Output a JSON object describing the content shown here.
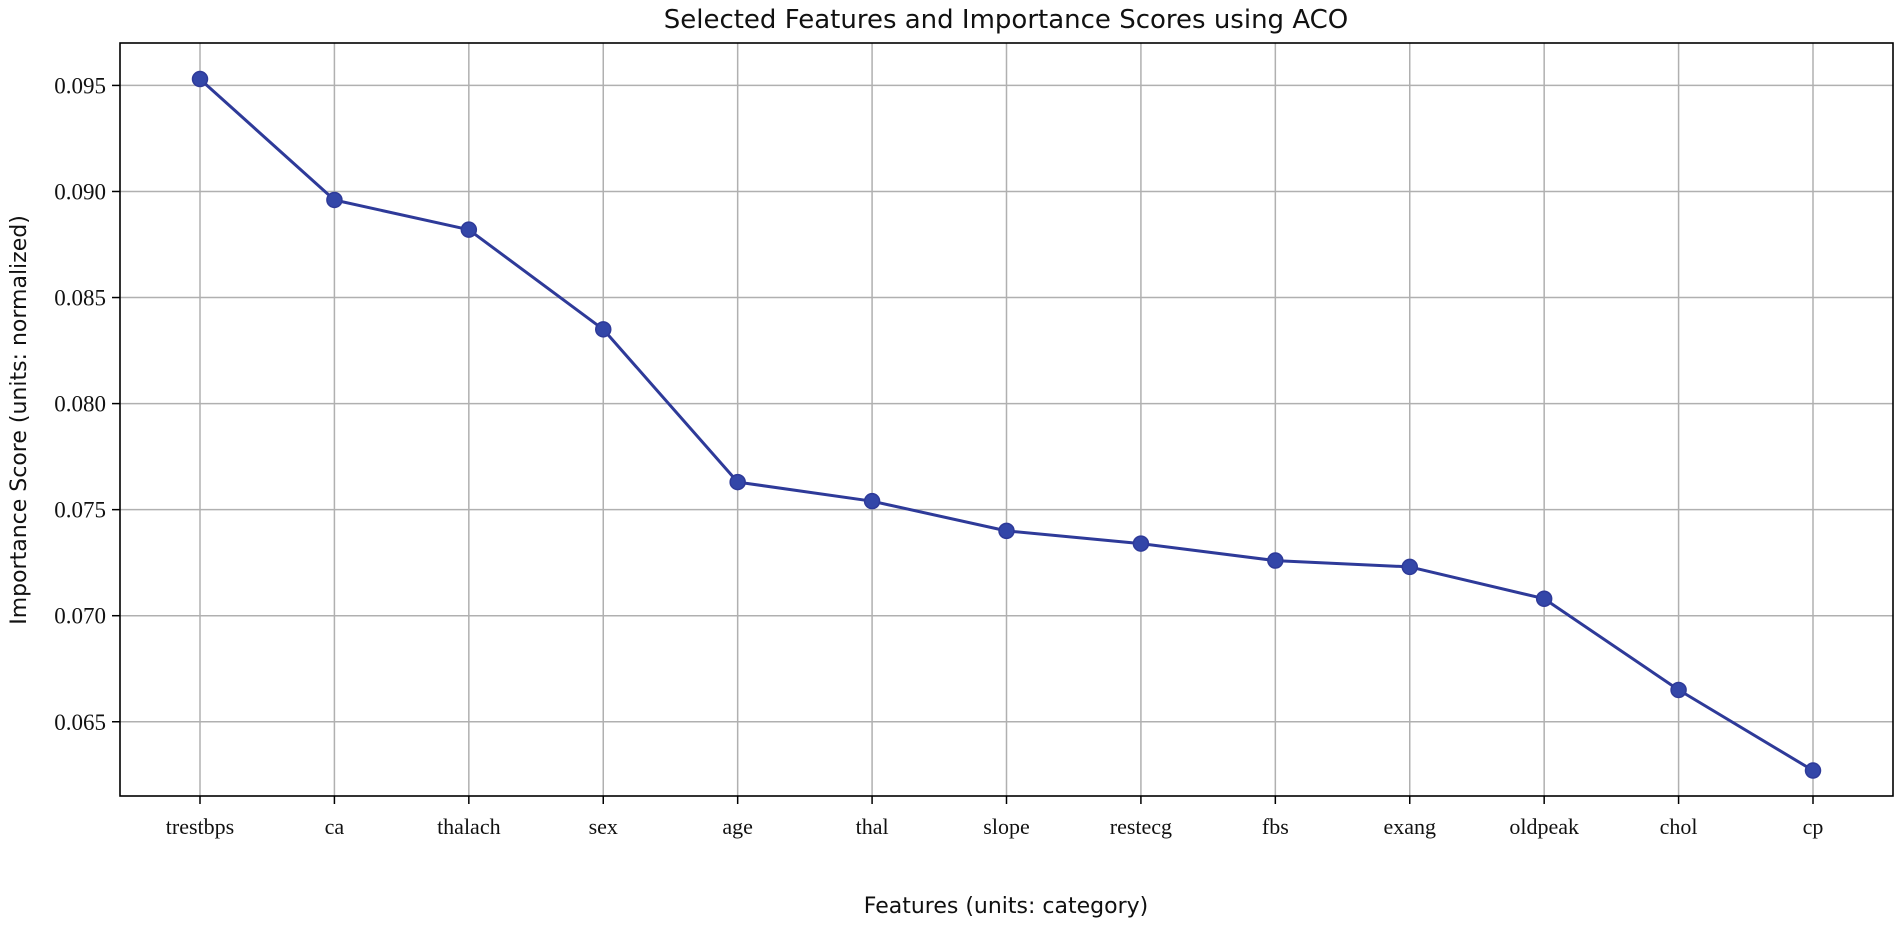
{
  "chart_data": {
    "type": "line",
    "title": "Selected Features and Importance Scores using ACO",
    "xlabel": "Features (units: category)",
    "ylabel": "Importance Score (units: normalized)",
    "categories": [
      "trestbps",
      "ca",
      "thalach",
      "sex",
      "age",
      "thal",
      "slope",
      "restecg",
      "fbs",
      "exang",
      "oldpeak",
      "chol",
      "cp"
    ],
    "series": [
      {
        "values": [
          0.0953,
          0.0896,
          0.0882,
          0.0835,
          0.0763,
          0.0754,
          0.074,
          0.0734,
          0.0726,
          0.0723,
          0.0708,
          0.0665,
          0.0627
        ]
      }
    ],
    "yticks": [
      "0.065",
      "0.070",
      "0.075",
      "0.080",
      "0.085",
      "0.090",
      "0.095"
    ],
    "ylim": [
      0.0615,
      0.097
    ],
    "grid": true,
    "colors": {
      "line": "#2e3a99",
      "marker": "#3346a8"
    }
  }
}
